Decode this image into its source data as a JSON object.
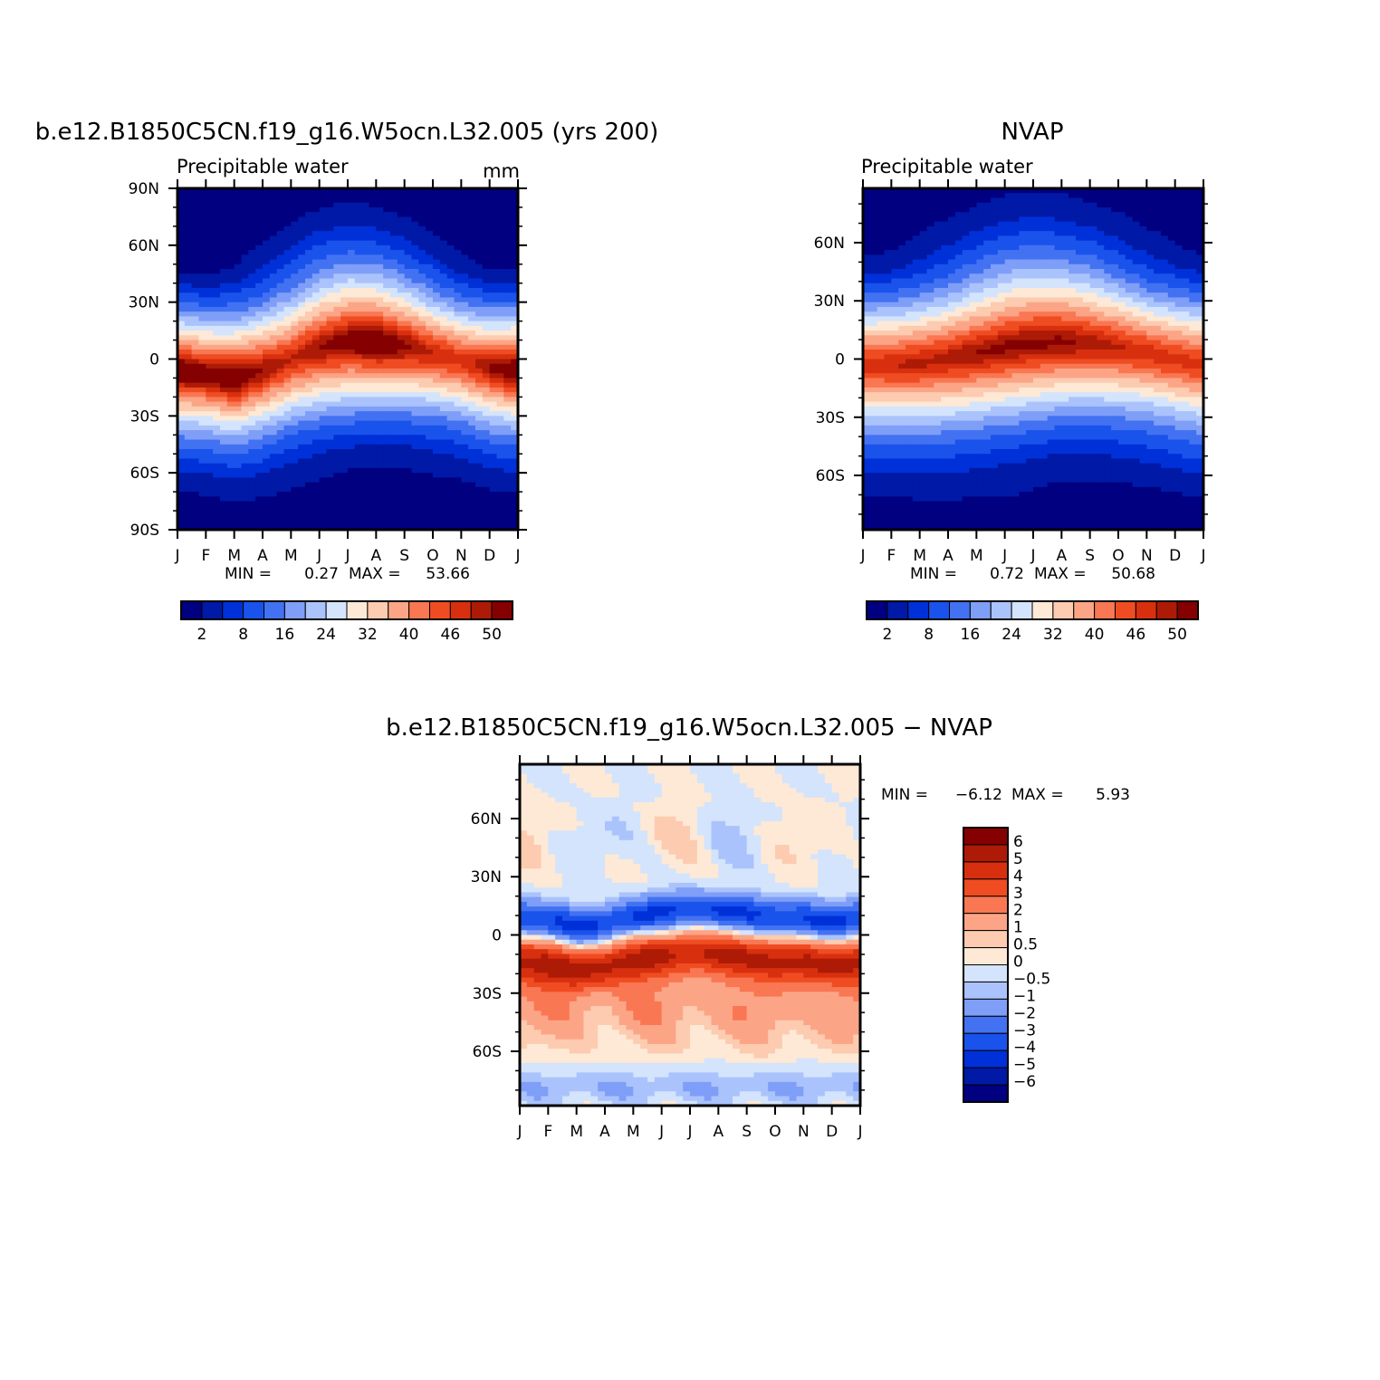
{
  "colors": {
    "abs_fill": [
      "#000080",
      "#0019a6",
      "#0030d8",
      "#1a52ec",
      "#4272f2",
      "#7f9ef8",
      "#abc3fc",
      "#d3e4fc",
      "#fde9d6",
      "#fccbb0",
      "#fca586",
      "#f97752",
      "#f04c22",
      "#d8300f",
      "#ad1b06",
      "#850000"
    ],
    "diff_fill": [
      "#000080",
      "#0019a6",
      "#0030d8",
      "#1a52ec",
      "#4272f2",
      "#7f9ef8",
      "#abc3fc",
      "#d3e4fc",
      "#fde9d6",
      "#fccbb0",
      "#fca586",
      "#f97752",
      "#f04c22",
      "#d8300f",
      "#ad1b06",
      "#850000"
    ]
  },
  "chart_data": [
    {
      "id": "model",
      "type": "heatmap",
      "title": "b.e12.B1850C5CN.f19_g16.W5ocn.L32.005 (yrs 200)",
      "left_label": "Precipitable water",
      "right_label": "mm",
      "x_tick_labels": [
        "J",
        "F",
        "M",
        "A",
        "M",
        "J",
        "J",
        "A",
        "S",
        "O",
        "N",
        "D",
        "J"
      ],
      "y_tick_labels": [
        "90N",
        "60N",
        "30N",
        "0",
        "30S",
        "60S",
        "90S"
      ],
      "y_tick_lats": [
        90,
        60,
        30,
        0,
        -30,
        -60,
        -90
      ],
      "lat_range": [
        -90,
        90
      ],
      "stats": {
        "min_label": "MIN =",
        "min": "0.27",
        "max_label": "MAX =",
        "max": "53.66"
      },
      "colorbar_labels": [
        "2",
        "8",
        "16",
        "24",
        "32",
        "40",
        "46",
        "50"
      ],
      "params": {
        "itcz_lat": [
          -6,
          -8,
          -10,
          -6,
          0,
          6,
          9,
          9,
          7,
          3,
          -1,
          -5
        ],
        "peak": [
          53.6,
          52,
          53.5,
          50,
          48,
          50,
          52,
          53.5,
          51,
          48,
          47,
          50
        ],
        "width": [
          22,
          22,
          23,
          24,
          25,
          26,
          26,
          25,
          24,
          23,
          22,
          22
        ]
      }
    },
    {
      "id": "obs",
      "type": "heatmap",
      "title": "NVAP",
      "left_label": "Precipitable water",
      "right_label": "",
      "x_tick_labels": [
        "J",
        "F",
        "M",
        "A",
        "M",
        "J",
        "J",
        "A",
        "S",
        "O",
        "N",
        "D",
        "J"
      ],
      "y_tick_labels": [
        "60N",
        "30N",
        "0",
        "30S",
        "60S"
      ],
      "y_tick_lats": [
        60,
        30,
        0,
        -30,
        -60
      ],
      "lat_range": [
        -88,
        88
      ],
      "stats": {
        "min_label": "MIN =",
        "min": "0.72",
        "max_label": "MAX =",
        "max": "50.68"
      },
      "colorbar_labels": [
        "2",
        "8",
        "16",
        "24",
        "32",
        "40",
        "46",
        "50"
      ],
      "params": {
        "itcz_lat": [
          -3,
          -3,
          -2,
          0,
          3,
          6,
          8,
          9,
          8,
          6,
          3,
          0
        ],
        "peak": [
          47,
          48,
          48.5,
          49,
          50,
          50.5,
          50.6,
          50.4,
          49.5,
          48.5,
          47.5,
          47
        ],
        "width": [
          24,
          24,
          25,
          26,
          27,
          28,
          28,
          27,
          26,
          25,
          24,
          24
        ]
      }
    },
    {
      "id": "diff",
      "type": "heatmap",
      "title": "b.e12.B1850C5CN.f19_g16.W5ocn.L32.005 − NVAP",
      "x_tick_labels": [
        "J",
        "F",
        "M",
        "A",
        "M",
        "J",
        "J",
        "A",
        "S",
        "O",
        "N",
        "D",
        "J"
      ],
      "y_tick_labels": [
        "60N",
        "30N",
        "0",
        "30S",
        "60S"
      ],
      "y_tick_lats": [
        60,
        30,
        0,
        -30,
        -60
      ],
      "lat_range": [
        -88,
        88
      ],
      "stats": {
        "min_label": "MIN =",
        "min": "−6.12",
        "max_label": "MAX =",
        "max": "5.93"
      },
      "levels": [
        -6,
        -5,
        -4,
        -3,
        -2,
        -1,
        -0.5,
        0,
        0.5,
        1,
        2,
        3,
        4,
        5,
        6
      ],
      "colorbar_labels": [
        "6",
        "5",
        "4",
        "3",
        "2",
        "1",
        "0.5",
        "0",
        "−0.5",
        "−1",
        "−2",
        "−3",
        "−4",
        "−5",
        "−6"
      ],
      "params": {
        "itcz_lat": [
          -3,
          -5,
          -8,
          -6,
          -3,
          0,
          1,
          0,
          -1,
          -3,
          -4,
          -5
        ]
      }
    }
  ]
}
